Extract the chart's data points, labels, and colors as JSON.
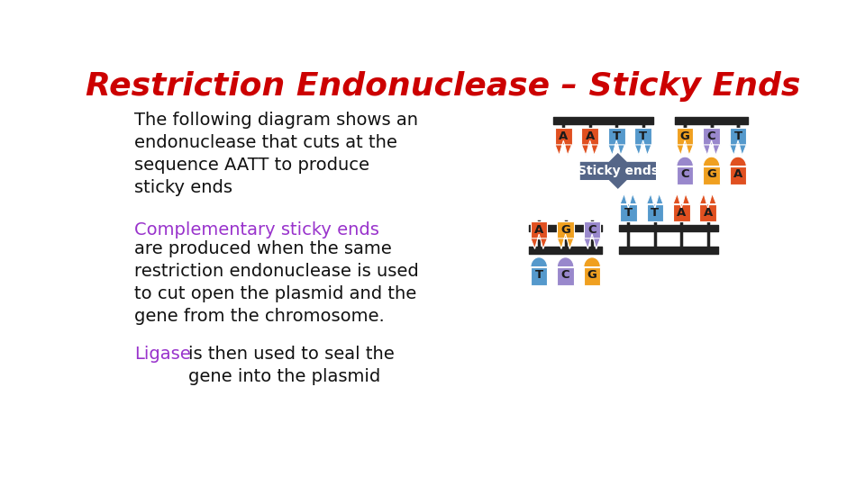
{
  "title": "Restriction Endonuclease – Sticky Ends",
  "title_color": "#cc0000",
  "title_fontsize": 26,
  "bg_color": "#ffffff",
  "colors": {
    "orange": "#e05020",
    "blue": "#5599cc",
    "gold": "#f0a020",
    "purple": "#9988cc",
    "dark": "#222222",
    "sticky_label_bg": "#556688",
    "sticky_label_text": "#ffffff"
  },
  "top_strand_left": {
    "letters": [
      "A",
      "A",
      "T",
      "T"
    ],
    "colors": [
      "orange",
      "orange",
      "blue",
      "blue"
    ]
  },
  "top_strand_right_top": {
    "letters": [
      "G",
      "C",
      "T"
    ],
    "colors": [
      "gold",
      "purple",
      "blue"
    ]
  },
  "top_strand_right_bot": {
    "letters": [
      "C",
      "G",
      "A"
    ],
    "colors": [
      "purple",
      "gold",
      "orange"
    ]
  },
  "bot_strand_left_top": {
    "letters": [
      "A",
      "G",
      "C"
    ],
    "colors": [
      "orange",
      "gold",
      "purple"
    ]
  },
  "bot_strand_left_bot": {
    "letters": [
      "T",
      "C",
      "G"
    ],
    "colors": [
      "blue",
      "purple",
      "gold"
    ]
  },
  "bot_strand_right": {
    "letters": [
      "T",
      "T",
      "A",
      "A"
    ],
    "colors": [
      "blue",
      "blue",
      "orange",
      "orange"
    ]
  }
}
